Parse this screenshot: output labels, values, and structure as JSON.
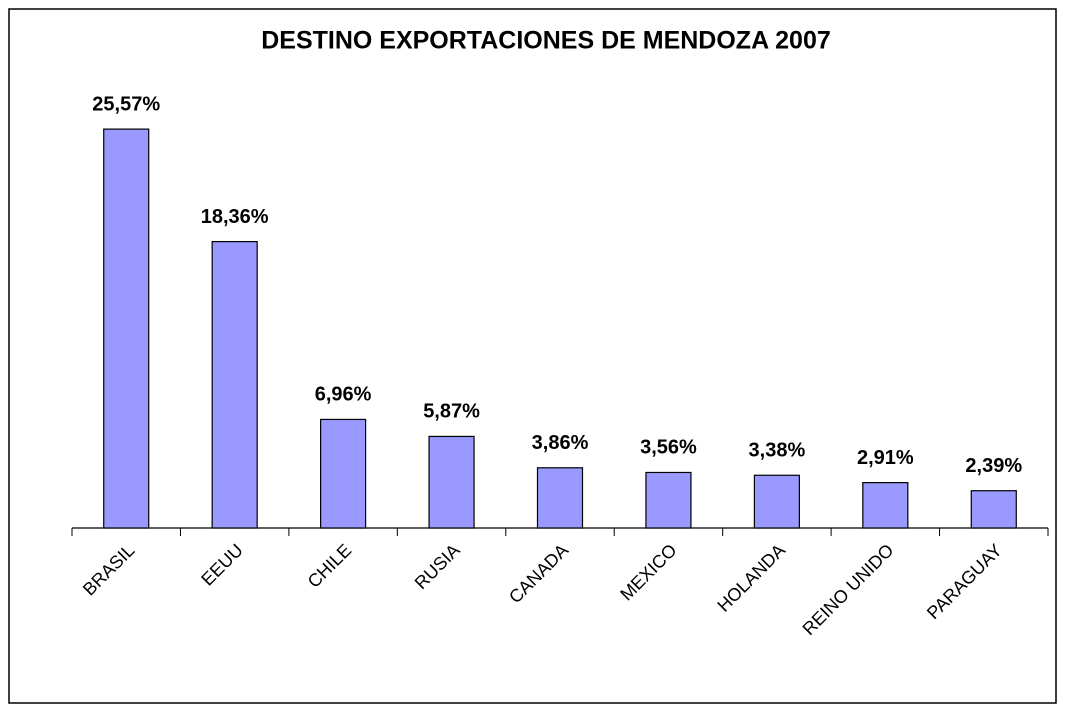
{
  "chart_data": {
    "type": "bar",
    "title": "DESTINO EXPORTACIONES DE MENDOZA 2007",
    "categories": [
      "BRASIL",
      "EEUU",
      "CHILE",
      "RUSIA",
      "CANADA",
      "MEXICO",
      "HOLANDA",
      "REINO UNIDO",
      "PARAGUAY"
    ],
    "values": [
      25.57,
      18.36,
      6.96,
      5.87,
      3.86,
      3.56,
      3.38,
      2.91,
      2.39
    ],
    "value_labels": [
      "25,57%",
      "18,36%",
      "6,96%",
      "5,87%",
      "3,86%",
      "3,56%",
      "3,38%",
      "2,91%",
      "2,39%"
    ],
    "color": "#9999ff"
  }
}
